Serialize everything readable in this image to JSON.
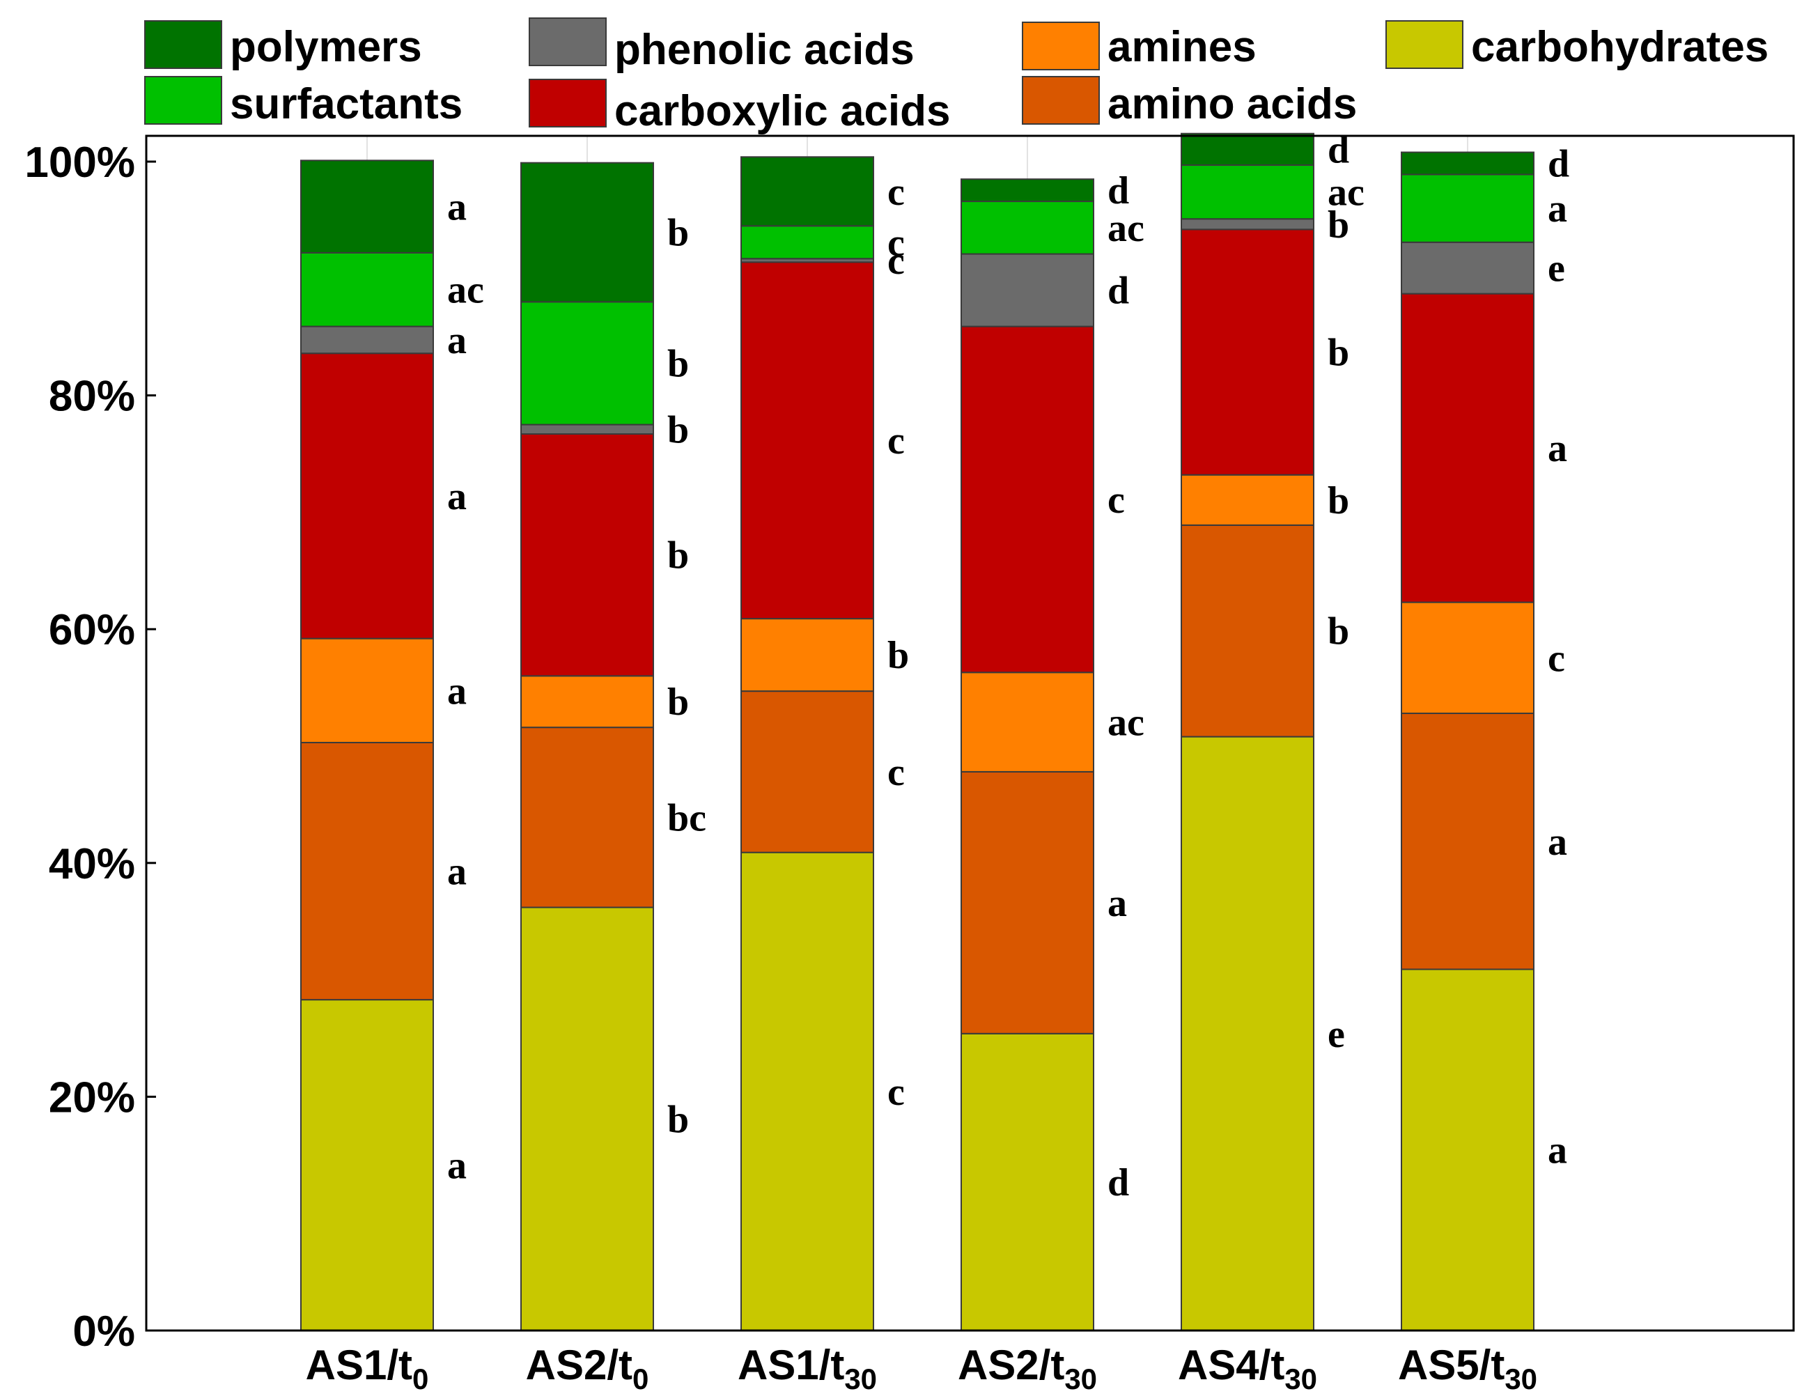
{
  "chart_data": {
    "type": "stacked-bar-100",
    "title": "",
    "xlabel": "",
    "ylabel": "",
    "ylim": [
      0,
      100
    ],
    "yticks": [
      "0%",
      "20%",
      "40%",
      "60%",
      "80%",
      "100%"
    ],
    "ytick_values": [
      0,
      20,
      40,
      60,
      80,
      100
    ],
    "categories": [
      {
        "base": "AS1/t",
        "sub": "0"
      },
      {
        "base": "AS2/t",
        "sub": "0"
      },
      {
        "base": "AS1/t",
        "sub": "30"
      },
      {
        "base": "AS2/t",
        "sub": "30"
      },
      {
        "base": "AS4/t",
        "sub": "30"
      },
      {
        "base": "AS5/t",
        "sub": "30"
      }
    ],
    "series": [
      {
        "name": "carbohydrates",
        "color": "#c8c800",
        "values": [
          28.3,
          36.2,
          40.9,
          25.4,
          50.8,
          30.9
        ],
        "letters": [
          "a",
          "b",
          "c",
          "d",
          "e",
          "a"
        ]
      },
      {
        "name": "amino acids",
        "color": "#d95700",
        "values": [
          22.0,
          15.4,
          13.8,
          22.4,
          18.1,
          21.9
        ],
        "letters": [
          "a",
          "bc",
          "c",
          "a",
          "b",
          "a"
        ]
      },
      {
        "name": "amines",
        "color": "#ff8000",
        "values": [
          8.9,
          4.4,
          6.2,
          8.5,
          4.3,
          9.5
        ],
        "letters": [
          "a",
          "b",
          "b",
          "ac",
          "b",
          "c"
        ]
      },
      {
        "name": "carboxylic acids",
        "color": "#c00000",
        "values": [
          24.4,
          20.7,
          30.5,
          29.6,
          21.0,
          26.4
        ],
        "letters": [
          "a",
          "b",
          "c",
          "c",
          "b",
          "a"
        ]
      },
      {
        "name": "phenolic acids",
        "color": "#6b6b6b",
        "values": [
          2.3,
          0.8,
          0.3,
          6.2,
          0.9,
          4.4
        ],
        "letters": [
          "a",
          "b",
          "c",
          "d",
          "b",
          "e"
        ]
      },
      {
        "name": "surfactants",
        "color": "#00c000",
        "values": [
          6.3,
          10.5,
          2.8,
          4.5,
          4.6,
          5.8
        ],
        "letters": [
          "ac",
          "b",
          "c",
          "ac",
          "ac",
          "a"
        ]
      },
      {
        "name": "polymers",
        "color": "#007300",
        "values": [
          7.9,
          11.9,
          5.9,
          1.9,
          2.7,
          1.9
        ],
        "letters": [
          "a",
          "b",
          "c",
          "d",
          "d",
          "d"
        ]
      }
    ],
    "legend": {
      "placement": "top",
      "rows": [
        [
          "polymers",
          "phenolic acids",
          "amines",
          "carbohydrates"
        ],
        [
          "surfactants",
          "carboxylic acids",
          "amino acids"
        ]
      ]
    },
    "grid": false
  }
}
